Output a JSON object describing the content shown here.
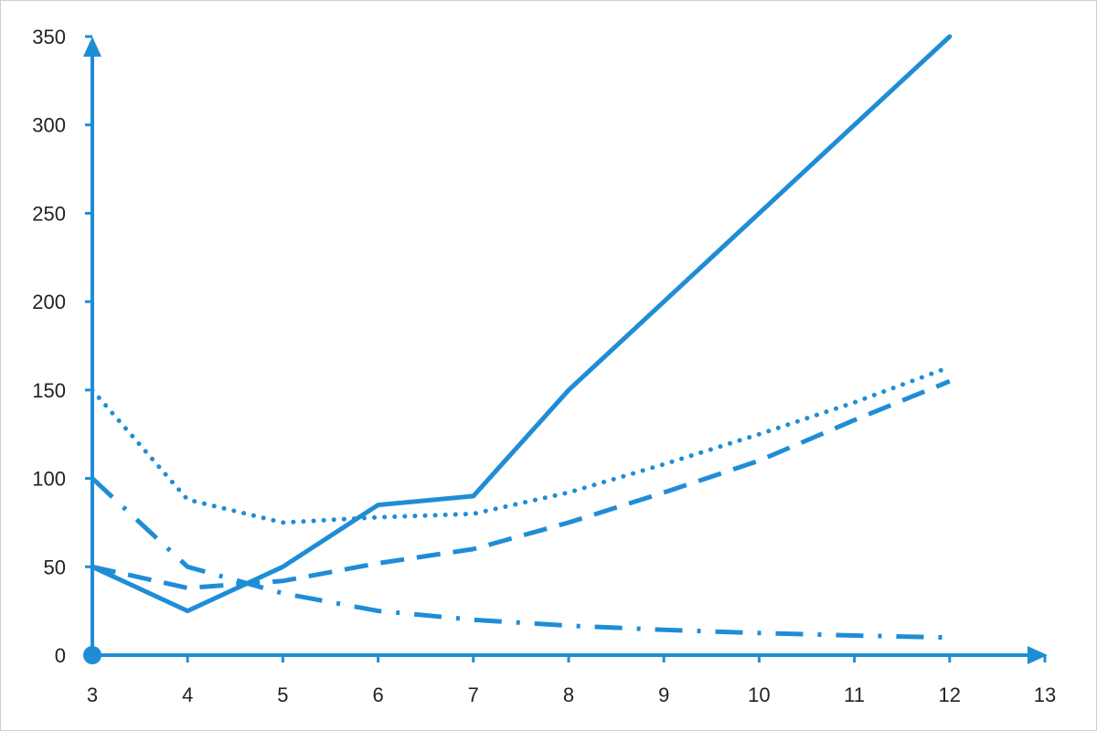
{
  "chart_data": {
    "type": "line",
    "title": "",
    "xlabel": "",
    "ylabel": "",
    "xlim": [
      3,
      13
    ],
    "ylim": [
      0,
      350
    ],
    "x_ticks": [
      3,
      4,
      5,
      6,
      7,
      8,
      9,
      10,
      11,
      12,
      13
    ],
    "y_ticks": [
      0,
      50,
      100,
      150,
      200,
      250,
      300,
      350
    ],
    "grid": false,
    "legend": "none",
    "color": "#1f8dd6",
    "series": [
      {
        "style": "solid",
        "x": [
          3,
          4,
          5,
          6,
          7,
          8,
          12
        ],
        "y": [
          50,
          25,
          50,
          85,
          90,
          150,
          350
        ]
      },
      {
        "style": "dotted",
        "x": [
          3,
          4,
          5,
          6,
          7,
          8,
          9,
          10,
          11,
          12
        ],
        "y": [
          150,
          88,
          75,
          78,
          80,
          92,
          108,
          125,
          143,
          163
        ]
      },
      {
        "style": "dashed",
        "x": [
          3,
          4,
          5,
          6,
          7,
          8,
          9,
          10,
          11,
          12
        ],
        "y": [
          50,
          38,
          42,
          52,
          60,
          75,
          92,
          110,
          133,
          155
        ]
      },
      {
        "style": "dash-dot",
        "x": [
          3,
          4,
          5,
          6,
          7,
          8,
          9,
          10,
          11,
          12
        ],
        "y": [
          100,
          50,
          35,
          25,
          20,
          16.7,
          14.3,
          12.5,
          11.1,
          10
        ]
      }
    ]
  }
}
